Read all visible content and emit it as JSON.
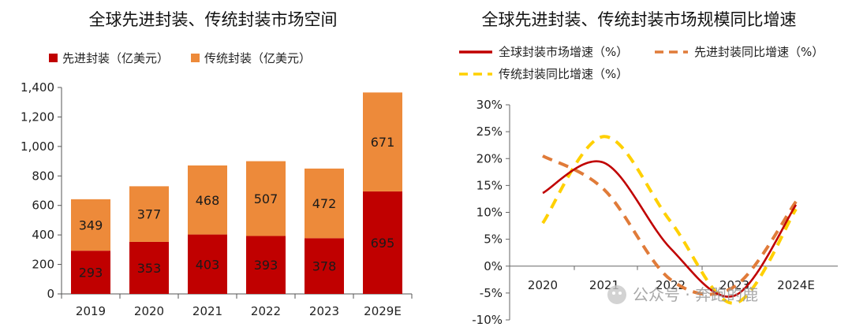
{
  "chart_data": [
    {
      "type": "bar",
      "stacked": true,
      "title": "全球先进封装、传统封装市场空间",
      "categories": [
        "2019",
        "2020",
        "2021",
        "2022",
        "2023",
        "2029E"
      ],
      "series": [
        {
          "name": "先进封装（亿美元）",
          "values": [
            293,
            353,
            403,
            393,
            378,
            695
          ],
          "color": "#c00000"
        },
        {
          "name": "传统封装（亿美元）",
          "values": [
            349,
            377,
            468,
            507,
            472,
            671
          ],
          "color": "#ed8a3a"
        }
      ],
      "ylim": [
        0,
        1400
      ],
      "yticks": [
        "0",
        "200",
        "400",
        "600",
        "800",
        "1,000",
        "1,200",
        "1,400"
      ],
      "legend_position": "top",
      "grid": false
    },
    {
      "type": "line",
      "title": "全球先进封装、传统封装市场规模同比增速",
      "x": [
        "2020",
        "2021",
        "2022",
        "2023",
        "2024E"
      ],
      "series": [
        {
          "name": "全球封装市场增速（%）",
          "values": [
            13.6,
            19.2,
            3.3,
            -5.5,
            11.4
          ],
          "color": "#c00000",
          "style": "solid"
        },
        {
          "name": "先进封装同比增速（%）",
          "values": [
            20.5,
            14.2,
            -2.5,
            -3.8,
            12.0
          ],
          "color": "#e07b39",
          "style": "dashed"
        },
        {
          "name": "传统封装同比增速（%）",
          "values": [
            8.0,
            24.1,
            8.3,
            -6.9,
            10.6
          ],
          "color": "#ffd000",
          "style": "dashed"
        }
      ],
      "ylim": [
        -10,
        30
      ],
      "yticks": [
        "-10%",
        "-5%",
        "0%",
        "5%",
        "10%",
        "15%",
        "20%",
        "25%",
        "30%"
      ],
      "legend_position": "top",
      "grid": false
    }
  ],
  "watermark": "公众号 · 奔跑的鹿"
}
